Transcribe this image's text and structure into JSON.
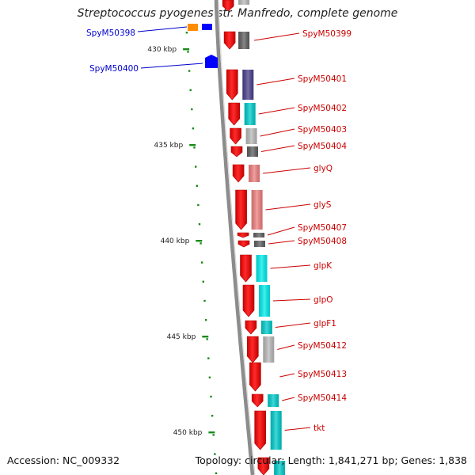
{
  "title": "Streptococcus pyogenes str. Manfredo, complete genome",
  "accession": "Accession: NC_009332",
  "topology": "Topology: circular; Length: 1,841,271 bp; Genes: 1,838",
  "colors": {
    "backbone": "#8c8c8c",
    "tick": "#1a8a1a",
    "gene_strand": "#ff0000",
    "label_right": "#cc0000",
    "label_left": "#0000cc",
    "cog_blue": "#0000ff",
    "cog_orange": "#ff8c00"
  },
  "kbp_ticks": [
    "430 kbp",
    "435 kbp",
    "440 kbp",
    "445 kbp",
    "450 kbp"
  ],
  "left_genes": [
    {
      "name": "SpyM50398",
      "color": "#0000cc"
    },
    {
      "name": "SpyM50400",
      "color": "#0000cc"
    }
  ],
  "right_genes": [
    {
      "name": "SpyM50399",
      "cog_color": "#606060"
    },
    {
      "name": "SpyM50401",
      "cog_color": "#4a3f8c"
    },
    {
      "name": "SpyM50402",
      "cog_color": "#00cccc"
    },
    {
      "name": "SpyM50403",
      "cog_color": "#bbbbbb"
    },
    {
      "name": "SpyM50404",
      "cog_color": "#606060"
    },
    {
      "name": "glyQ",
      "cog_color": "#f08080"
    },
    {
      "name": "glyS",
      "cog_color": "#f08080"
    },
    {
      "name": "SpyM50407",
      "cog_color": "#606060"
    },
    {
      "name": "SpyM50408",
      "cog_color": "#606060"
    },
    {
      "name": "glpK",
      "cog_color": "#00eeee"
    },
    {
      "name": "glpO",
      "cog_color": "#00eeee"
    },
    {
      "name": "glpF1",
      "cog_color": "#00cccc"
    },
    {
      "name": "SpyM50412",
      "cog_color": "#bbbbbb"
    },
    {
      "name": "SpyM50413",
      "cog_color": ""
    },
    {
      "name": "SpyM50414",
      "cog_color": "#00cccc"
    },
    {
      "name": "tkt",
      "cog_color": "#00cccc"
    }
  ]
}
